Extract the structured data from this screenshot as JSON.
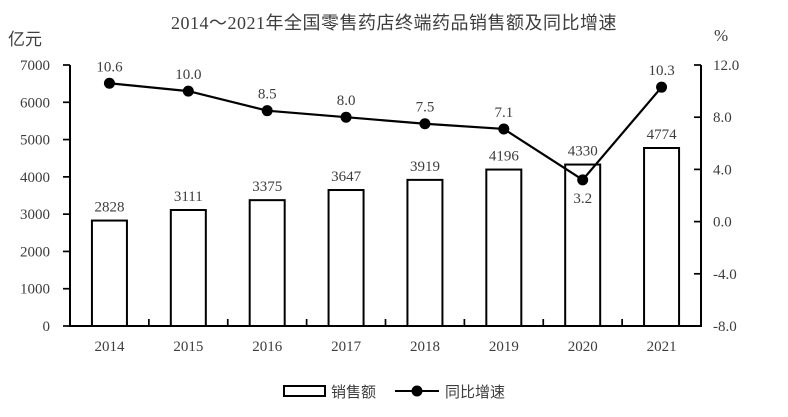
{
  "title": "2014～2021年全国零售药店终端药品销售额及同比增速",
  "left_axis_unit": "亿元",
  "right_axis_unit": "%",
  "legend": {
    "bar_label": "销售额",
    "line_label": "同比增速"
  },
  "chart_data": {
    "type": "bar+line combo",
    "title": "2014～2021年全国零售药店终端药品销售额及同比增速",
    "categories": [
      "2014",
      "2015",
      "2016",
      "2017",
      "2018",
      "2019",
      "2020",
      "2021"
    ],
    "series": [
      {
        "name": "销售额",
        "type": "bar",
        "axis": "left",
        "unit": "亿元",
        "values": [
          2828,
          3111,
          3375,
          3647,
          3919,
          4196,
          4330,
          4774
        ]
      },
      {
        "name": "同比增速",
        "type": "line",
        "axis": "right",
        "unit": "%",
        "values": [
          10.6,
          10.0,
          8.5,
          8.0,
          7.5,
          7.1,
          3.2,
          10.3
        ]
      }
    ],
    "left_axis": {
      "unit": "亿元",
      "min": 0,
      "max": 7000,
      "step": 1000,
      "tick_labels": [
        "0",
        "1000",
        "2000",
        "3000",
        "4000",
        "5000",
        "6000",
        "7000"
      ]
    },
    "right_axis": {
      "unit": "%",
      "min": -8,
      "max": 12,
      "step": 4,
      "tick_labels": [
        "-8.0",
        "-4.0",
        "0.0",
        "4.0",
        "8.0",
        "12.0"
      ]
    },
    "legend_position": "bottom",
    "grid": false,
    "bar_fill": "#ffffff",
    "bar_border": "#000000",
    "line_color": "#000000",
    "label_color": "#3d3d3d"
  }
}
